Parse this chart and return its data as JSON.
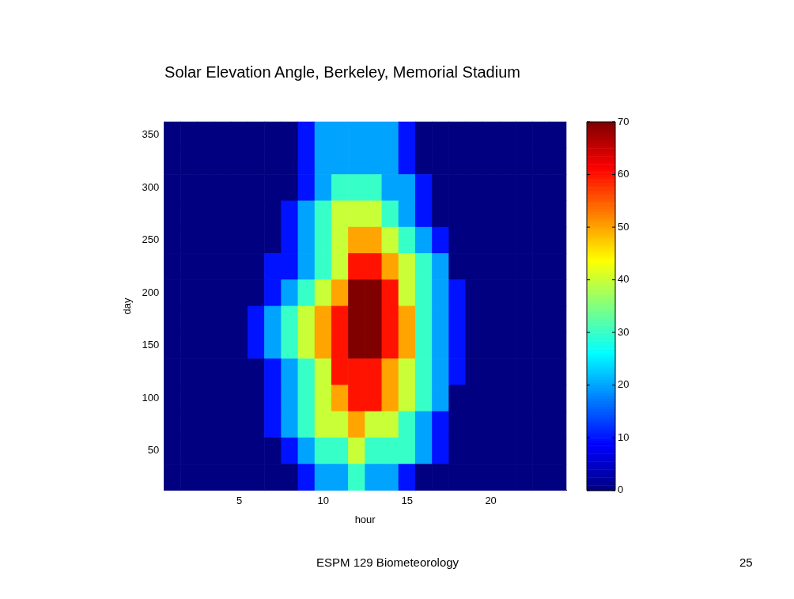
{
  "chart_data": {
    "type": "heatmap",
    "title": "Solar Elevation Angle, Berkeley, Memorial Stadium",
    "xlabel": "hour",
    "ylabel": "day",
    "categories": [
      null,
      null,
      null,
      null,
      "5",
      null,
      null,
      null,
      null,
      "10",
      null,
      null,
      null,
      null,
      "15",
      null,
      null,
      null,
      null,
      "20",
      null,
      null,
      null,
      null
    ],
    "y_categories": [
      "350",
      null,
      "300",
      null,
      "250",
      null,
      "200",
      null,
      "150",
      null,
      "100",
      null,
      "50",
      null
    ],
    "cells": [
      [
        0,
        0,
        0,
        0,
        0,
        0,
        0,
        0,
        10,
        20,
        20,
        20,
        20,
        20,
        10,
        0,
        0,
        0,
        0,
        0,
        0,
        0,
        0,
        0
      ],
      [
        0,
        0,
        0,
        0,
        0,
        0,
        0,
        0,
        10,
        20,
        20,
        20,
        20,
        20,
        10,
        0,
        0,
        0,
        0,
        0,
        0,
        0,
        0,
        0
      ],
      [
        0,
        0,
        0,
        0,
        0,
        0,
        0,
        0,
        10,
        20,
        30,
        30,
        30,
        20,
        20,
        10,
        0,
        0,
        0,
        0,
        0,
        0,
        0,
        0
      ],
      [
        0,
        0,
        0,
        0,
        0,
        0,
        0,
        10,
        20,
        30,
        40,
        40,
        40,
        30,
        20,
        10,
        0,
        0,
        0,
        0,
        0,
        0,
        0,
        0
      ],
      [
        0,
        0,
        0,
        0,
        0,
        0,
        0,
        10,
        20,
        30,
        40,
        50,
        50,
        40,
        30,
        20,
        10,
        0,
        0,
        0,
        0,
        0,
        0,
        0
      ],
      [
        0,
        0,
        0,
        0,
        0,
        0,
        10,
        10,
        20,
        30,
        40,
        60,
        60,
        50,
        40,
        30,
        20,
        0,
        0,
        0,
        0,
        0,
        0,
        0
      ],
      [
        0,
        0,
        0,
        0,
        0,
        0,
        10,
        20,
        30,
        40,
        50,
        70,
        70,
        60,
        40,
        30,
        20,
        10,
        0,
        0,
        0,
        0,
        0,
        0
      ],
      [
        0,
        0,
        0,
        0,
        0,
        10,
        20,
        30,
        40,
        50,
        60,
        70,
        70,
        60,
        50,
        30,
        20,
        10,
        0,
        0,
        0,
        0,
        0,
        0
      ],
      [
        0,
        0,
        0,
        0,
        0,
        10,
        20,
        30,
        40,
        50,
        60,
        70,
        70,
        60,
        50,
        30,
        20,
        10,
        0,
        0,
        0,
        0,
        0,
        0
      ],
      [
        0,
        0,
        0,
        0,
        0,
        0,
        10,
        20,
        30,
        40,
        60,
        60,
        60,
        50,
        40,
        30,
        20,
        10,
        0,
        0,
        0,
        0,
        0,
        0
      ],
      [
        0,
        0,
        0,
        0,
        0,
        0,
        10,
        20,
        30,
        40,
        50,
        60,
        60,
        50,
        40,
        30,
        20,
        0,
        0,
        0,
        0,
        0,
        0,
        0
      ],
      [
        0,
        0,
        0,
        0,
        0,
        0,
        10,
        20,
        30,
        40,
        40,
        50,
        40,
        40,
        30,
        20,
        10,
        0,
        0,
        0,
        0,
        0,
        0,
        0
      ],
      [
        0,
        0,
        0,
        0,
        0,
        0,
        0,
        10,
        20,
        30,
        30,
        40,
        30,
        30,
        30,
        20,
        10,
        0,
        0,
        0,
        0,
        0,
        0,
        0
      ],
      [
        0,
        0,
        0,
        0,
        0,
        0,
        0,
        0,
        10,
        20,
        20,
        30,
        20,
        20,
        10,
        0,
        0,
        0,
        0,
        0,
        0,
        0,
        0,
        0
      ]
    ],
    "clim": [
      0,
      70
    ],
    "cticks": [
      0,
      10,
      20,
      30,
      40,
      50,
      60,
      70
    ],
    "annotations": [
      "ESPM 129 Biometeorology",
      "25"
    ]
  }
}
